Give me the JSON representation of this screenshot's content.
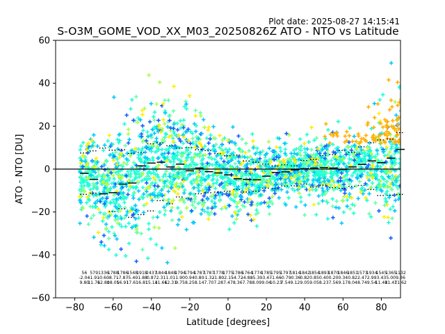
{
  "plot_date": "Plot date: 2025-08-27 14:15:41",
  "chart_data": {
    "type": "scatter",
    "title": "S-O3M_GOME_VOD_XX_M03_20250826Z ATO - NTO vs Latitude",
    "xlabel": "Latitude [degrees]",
    "ylabel": "ATO - NTO [DU]",
    "xlim": [
      -90,
      90
    ],
    "ylim": [
      -60,
      60
    ],
    "xticks": [
      -80,
      -60,
      -40,
      -20,
      0,
      20,
      40,
      60,
      80
    ],
    "yticks": [
      -60,
      -40,
      -20,
      0,
      20,
      40,
      60
    ],
    "grid": false,
    "legend": "none",
    "reference_line": 0,
    "colors": {
      "dark_blue": "#0000dd",
      "blue": "#1560ff",
      "sky": "#00c8ff",
      "aqua": "#1effd6",
      "mint": "#66ffaa",
      "lime": "#a8ff4c",
      "yellow": "#ffee00",
      "orange": "#ffb000",
      "median_marker": "#000000",
      "percentile_marker": "#000000"
    },
    "bins": {
      "lat_start": -75,
      "lat_step": 5,
      "median": [
        -2.0,
        -4.8,
        -11.5,
        -11.0,
        -7.0,
        -6.5,
        1.5,
        2.8,
        3.2,
        1.0,
        2.3,
        -0.8,
        0.5,
        -1.2,
        -1.8,
        -2.7,
        -4.5,
        -4.8,
        -5.0,
        -3.3,
        -1.6,
        -1.3,
        -0.4,
        0.2,
        0.5,
        0.7,
        0.5,
        -0.2,
        1.0,
        2.2,
        3.8,
        3.0,
        5.1,
        9.2
      ],
      "p_high": [
        7.5,
        8.5,
        9.8,
        8.8,
        9.0,
        7.3,
        7.8,
        11.8,
        12.2,
        10.9,
        9.8,
        10.0,
        9.0,
        8.6,
        7.2,
        6.2,
        6.5,
        3.8,
        3.2,
        2.3,
        1.5,
        2.0,
        1.5,
        4.0,
        4.5,
        6.3,
        6.8,
        8.7,
        7.8,
        10.4,
        12.3,
        13.6,
        14.0,
        17.0
      ],
      "p_low": [
        -11.8,
        -11.2,
        -11.6,
        -19.8,
        -18.5,
        -22.5,
        -21.2,
        -19.5,
        -14.7,
        -16.2,
        -13.0,
        -13.6,
        -11.5,
        -11.0,
        -10.7,
        -10.3,
        -9.5,
        -10.7,
        -10.3,
        -8.9,
        -9.1,
        -7.9,
        -7.8,
        -7.0,
        -8.3,
        -7.5,
        -8.6,
        -9.0,
        -8.1,
        -7.6,
        -9.5,
        -12.3,
        -12.2,
        -11.8
      ]
    },
    "bin_stats": {
      "counts": [
        "56",
        "579",
        "1336",
        "1788",
        "1786",
        "1548",
        "1918",
        "2437",
        "1844",
        "1848",
        "1794",
        "1794",
        "1787",
        "1787",
        "1778",
        "1775",
        "1786",
        "1764",
        "1774",
        "1785",
        "1795",
        "1797",
        "1814",
        "1842",
        "1854",
        "1893",
        "1870",
        "1846",
        "1851",
        "1573",
        "1934",
        "1545",
        "1365",
        "1132"
      ],
      "means": [
        "-2.04",
        "-1.91",
        "-0.60",
        "-8.71",
        "-7.87",
        "-5.40",
        "-1.88",
        "0.87",
        "2.31",
        "1.01",
        "1.90",
        "0.94",
        "0.80",
        "-1.32",
        "-1.80",
        "-2.15",
        "-4.72",
        "-4.88",
        "-5.30",
        "-3.47",
        "-1.66",
        "-0.79",
        "-0.36",
        "0.82",
        "0.85",
        "0.40",
        "0.20",
        "0.34",
        "0.82",
        "2.47",
        "2.99",
        "3.43",
        "5.00",
        "9.36"
      ],
      "stds": [
        "9.80",
        "11.76",
        "12.80",
        "18.05",
        "16.91",
        "17.61",
        "16.81",
        "15.14",
        "11.66",
        "12.31",
        "9.75",
        "8.25",
        "8.14",
        "7.70",
        "7.28",
        "7.47",
        "8.36",
        "7.78",
        "8.09",
        "9.04",
        "10.23",
        "7.54",
        "9.12",
        "9.05",
        "9.05",
        "8.23",
        "7.56",
        "9.17",
        "8.04",
        "8.74",
        "9.54",
        "11.48",
        "11.47",
        "11.62"
      ]
    }
  }
}
